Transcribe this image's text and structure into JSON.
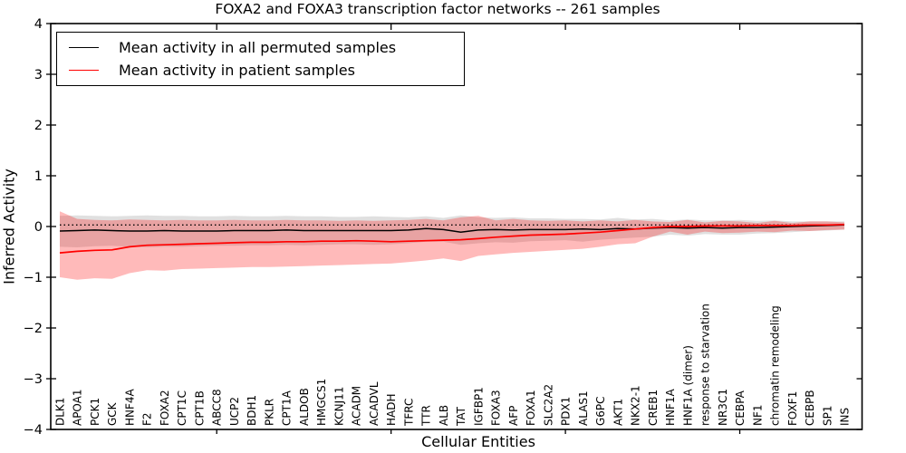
{
  "figure": {
    "title": "FOXA2 and FOXA3 transcription factor networks -- 261 samples",
    "xlabel": "Cellular Entities",
    "ylabel": "Inferred Activity"
  },
  "legend": {
    "items": [
      {
        "label": "Mean activity in all permuted samples",
        "color": "#000000"
      },
      {
        "label": "Mean activity in patient samples",
        "color": "#ff0000"
      }
    ],
    "position": "upper left"
  },
  "chart_data": {
    "type": "line",
    "title": "FOXA2 and FOXA3 transcription factor networks -- 261 samples",
    "xlabel": "Cellular Entities",
    "ylabel": "Inferred Activity",
    "ylim": [
      -4,
      4
    ],
    "ytick_values": [
      4,
      3,
      2,
      1,
      0,
      -1,
      -2,
      -3,
      -4
    ],
    "ytick_labels": [
      "4",
      "3",
      "2",
      "1",
      "0",
      "−1",
      "−2",
      "−3",
      "−4"
    ],
    "grid": false,
    "legend_position": "upper left",
    "minor_xtick_indices": [
      9,
      19,
      29,
      39
    ],
    "categories": [
      "DLK1",
      "APOA1",
      "PCK1",
      "GCK",
      "HNF4A",
      "F2",
      "FOXA2",
      "CPT1C",
      "CPT1B",
      "ABCC8",
      "UCP2",
      "BDH1",
      "PKLR",
      "CPT1A",
      "ALDOB",
      "HMGCS1",
      "KCNJ11",
      "ACADM",
      "ACADVL",
      "HADH",
      "TFRC",
      "TTR",
      "ALB",
      "TAT",
      "IGFBP1",
      "FOXA3",
      "AFP",
      "FOXA1",
      "SLC2A2",
      "PDX1",
      "ALAS1",
      "G6PC",
      "AKT1",
      "NKX2-1",
      "CREB1",
      "HNF1A",
      "HNF1A (dimer)",
      "response to starvation",
      "NR3C1",
      "CEBPA",
      "NF1",
      "chromatin remodeling",
      "FOXF1",
      "CEBPB",
      "SP1",
      "INS"
    ],
    "reference_line": {
      "y": 0.03,
      "style": "dotted",
      "color": "#000000"
    },
    "series": [
      {
        "name": "Mean activity in all permuted samples",
        "color": "#000000",
        "band_fill": "rgba(130,130,130,0.25)",
        "values": [
          -0.09,
          -0.08,
          -0.07,
          -0.08,
          -0.09,
          -0.09,
          -0.08,
          -0.09,
          -0.09,
          -0.09,
          -0.08,
          -0.08,
          -0.08,
          -0.07,
          -0.08,
          -0.08,
          -0.08,
          -0.08,
          -0.08,
          -0.08,
          -0.07,
          -0.04,
          -0.06,
          -0.11,
          -0.07,
          -0.06,
          -0.07,
          -0.06,
          -0.06,
          -0.06,
          -0.05,
          -0.06,
          -0.04,
          -0.05,
          -0.03,
          -0.02,
          -0.03,
          -0.02,
          -0.03,
          -0.02,
          -0.02,
          -0.01,
          0.0,
          0.01,
          0.02,
          0.03
        ],
        "band_upper": [
          0.21,
          0.22,
          0.21,
          0.2,
          0.21,
          0.22,
          0.21,
          0.21,
          0.2,
          0.2,
          0.21,
          0.2,
          0.2,
          0.21,
          0.2,
          0.2,
          0.19,
          0.19,
          0.2,
          0.19,
          0.18,
          0.2,
          0.17,
          0.22,
          0.18,
          0.17,
          0.18,
          0.16,
          0.16,
          0.15,
          0.15,
          0.14,
          0.17,
          0.14,
          0.15,
          0.12,
          0.14,
          0.12,
          0.12,
          0.13,
          0.11,
          0.12,
          0.1,
          0.1,
          0.1,
          0.1
        ],
        "band_lower": [
          -0.4,
          -0.41,
          -0.39,
          -0.38,
          -0.4,
          -0.41,
          -0.4,
          -0.4,
          -0.39,
          -0.38,
          -0.38,
          -0.37,
          -0.37,
          -0.36,
          -0.37,
          -0.36,
          -0.35,
          -0.35,
          -0.36,
          -0.35,
          -0.33,
          -0.3,
          -0.3,
          -0.36,
          -0.33,
          -0.31,
          -0.32,
          -0.29,
          -0.28,
          -0.27,
          -0.3,
          -0.26,
          -0.24,
          -0.22,
          -0.2,
          -0.16,
          -0.18,
          -0.15,
          -0.16,
          -0.16,
          -0.14,
          -0.13,
          -0.11,
          -0.09,
          -0.08,
          -0.06
        ]
      },
      {
        "name": "Mean activity in patient samples",
        "color": "#ff0000",
        "band_fill": "rgba(255,0,0,0.27)",
        "values": [
          -0.52,
          -0.49,
          -0.47,
          -0.46,
          -0.4,
          -0.37,
          -0.36,
          -0.35,
          -0.34,
          -0.33,
          -0.32,
          -0.31,
          -0.31,
          -0.3,
          -0.3,
          -0.29,
          -0.29,
          -0.28,
          -0.29,
          -0.3,
          -0.29,
          -0.28,
          -0.27,
          -0.26,
          -0.24,
          -0.21,
          -0.19,
          -0.17,
          -0.16,
          -0.15,
          -0.13,
          -0.11,
          -0.08,
          -0.05,
          -0.02,
          0.0,
          0.0,
          0.01,
          0.01,
          0.01,
          0.02,
          0.02,
          0.02,
          0.03,
          0.03,
          0.04
        ],
        "band_upper": [
          0.3,
          0.15,
          0.13,
          0.12,
          0.14,
          0.13,
          0.12,
          0.13,
          0.12,
          0.12,
          0.13,
          0.12,
          0.12,
          0.13,
          0.12,
          0.12,
          0.11,
          0.12,
          0.11,
          0.12,
          0.13,
          0.15,
          0.12,
          0.18,
          0.21,
          0.12,
          0.15,
          0.12,
          0.11,
          0.12,
          0.1,
          0.12,
          0.1,
          0.13,
          0.1,
          0.09,
          0.13,
          0.08,
          0.11,
          0.1,
          0.07,
          0.11,
          0.07,
          0.1,
          0.1,
          0.08
        ],
        "band_lower": [
          -1.0,
          -1.05,
          -1.02,
          -1.03,
          -0.92,
          -0.86,
          -0.87,
          -0.84,
          -0.83,
          -0.82,
          -0.81,
          -0.8,
          -0.8,
          -0.79,
          -0.78,
          -0.77,
          -0.76,
          -0.75,
          -0.74,
          -0.73,
          -0.7,
          -0.67,
          -0.63,
          -0.68,
          -0.58,
          -0.55,
          -0.52,
          -0.5,
          -0.48,
          -0.46,
          -0.44,
          -0.4,
          -0.35,
          -0.33,
          -0.2,
          -0.1,
          -0.16,
          -0.1,
          -0.13,
          -0.12,
          -0.1,
          -0.11,
          -0.08,
          -0.09,
          -0.07,
          -0.06
        ]
      }
    ]
  }
}
